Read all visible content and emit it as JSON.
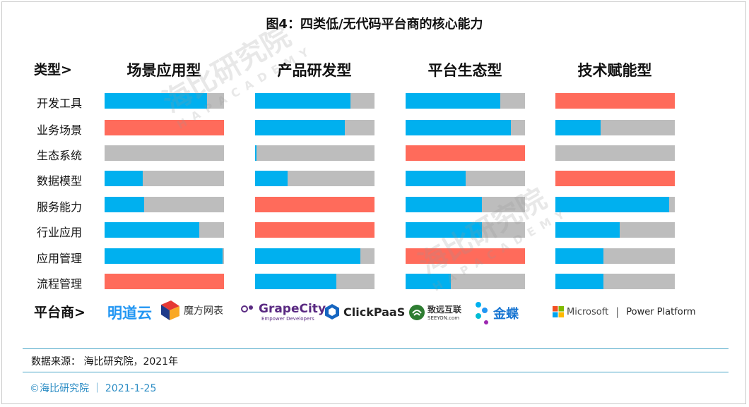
{
  "title": "图4：四类低/无代码平台商的核心能力",
  "type_label": "类型>",
  "vendor_label": "平台商>",
  "source": "数据来源： 海比研究院，2021年",
  "footer": "©海比研究院 ｜ 2021-1-25",
  "watermark": {
    "cn": "海比研究院",
    "en": "H A P  A C A D E M Y"
  },
  "colors": {
    "fill": "#00b0ef",
    "remainder": "#bdbdbd",
    "highlight": "#ff6b5b"
  },
  "chart_data": {
    "type": "bar",
    "orientation": "horizontal",
    "scale": [
      0,
      100
    ],
    "groups": [
      "场景应用型",
      "产品研发型",
      "平台生态型",
      "技术赋能型"
    ],
    "categories": [
      "开发工具",
      "业务场景",
      "生态系统",
      "数据模型",
      "服务能力",
      "行业应用",
      "应用管理",
      "流程管理"
    ],
    "series": [
      {
        "group": "场景应用型",
        "values": [
          86,
          100,
          0,
          32,
          33,
          79,
          99,
          100
        ],
        "highlight": [
          false,
          true,
          false,
          false,
          false,
          false,
          false,
          true
        ]
      },
      {
        "group": "产品研发型",
        "values": [
          80,
          75,
          1,
          27,
          100,
          100,
          88,
          68
        ],
        "highlight": [
          false,
          false,
          false,
          false,
          true,
          true,
          false,
          false
        ]
      },
      {
        "group": "平台生态型",
        "values": [
          79,
          88,
          100,
          50,
          64,
          64,
          100,
          38
        ],
        "highlight": [
          false,
          false,
          true,
          false,
          false,
          false,
          true,
          false
        ]
      },
      {
        "group": "技术赋能型",
        "values": [
          100,
          38,
          0,
          100,
          95,
          54,
          40,
          40
        ],
        "highlight": [
          true,
          false,
          false,
          true,
          false,
          false,
          false,
          false
        ]
      }
    ]
  },
  "vendors": {
    "g1": [
      "明道云",
      "魔方网表"
    ],
    "g2": [
      "GrapeCity",
      "Empower Developers",
      "ClickPaaS"
    ],
    "g3": [
      "致远互联",
      "SEEYON.com",
      "金蝶"
    ],
    "g4": [
      "Microsoft",
      "|",
      "Power Platform"
    ]
  }
}
